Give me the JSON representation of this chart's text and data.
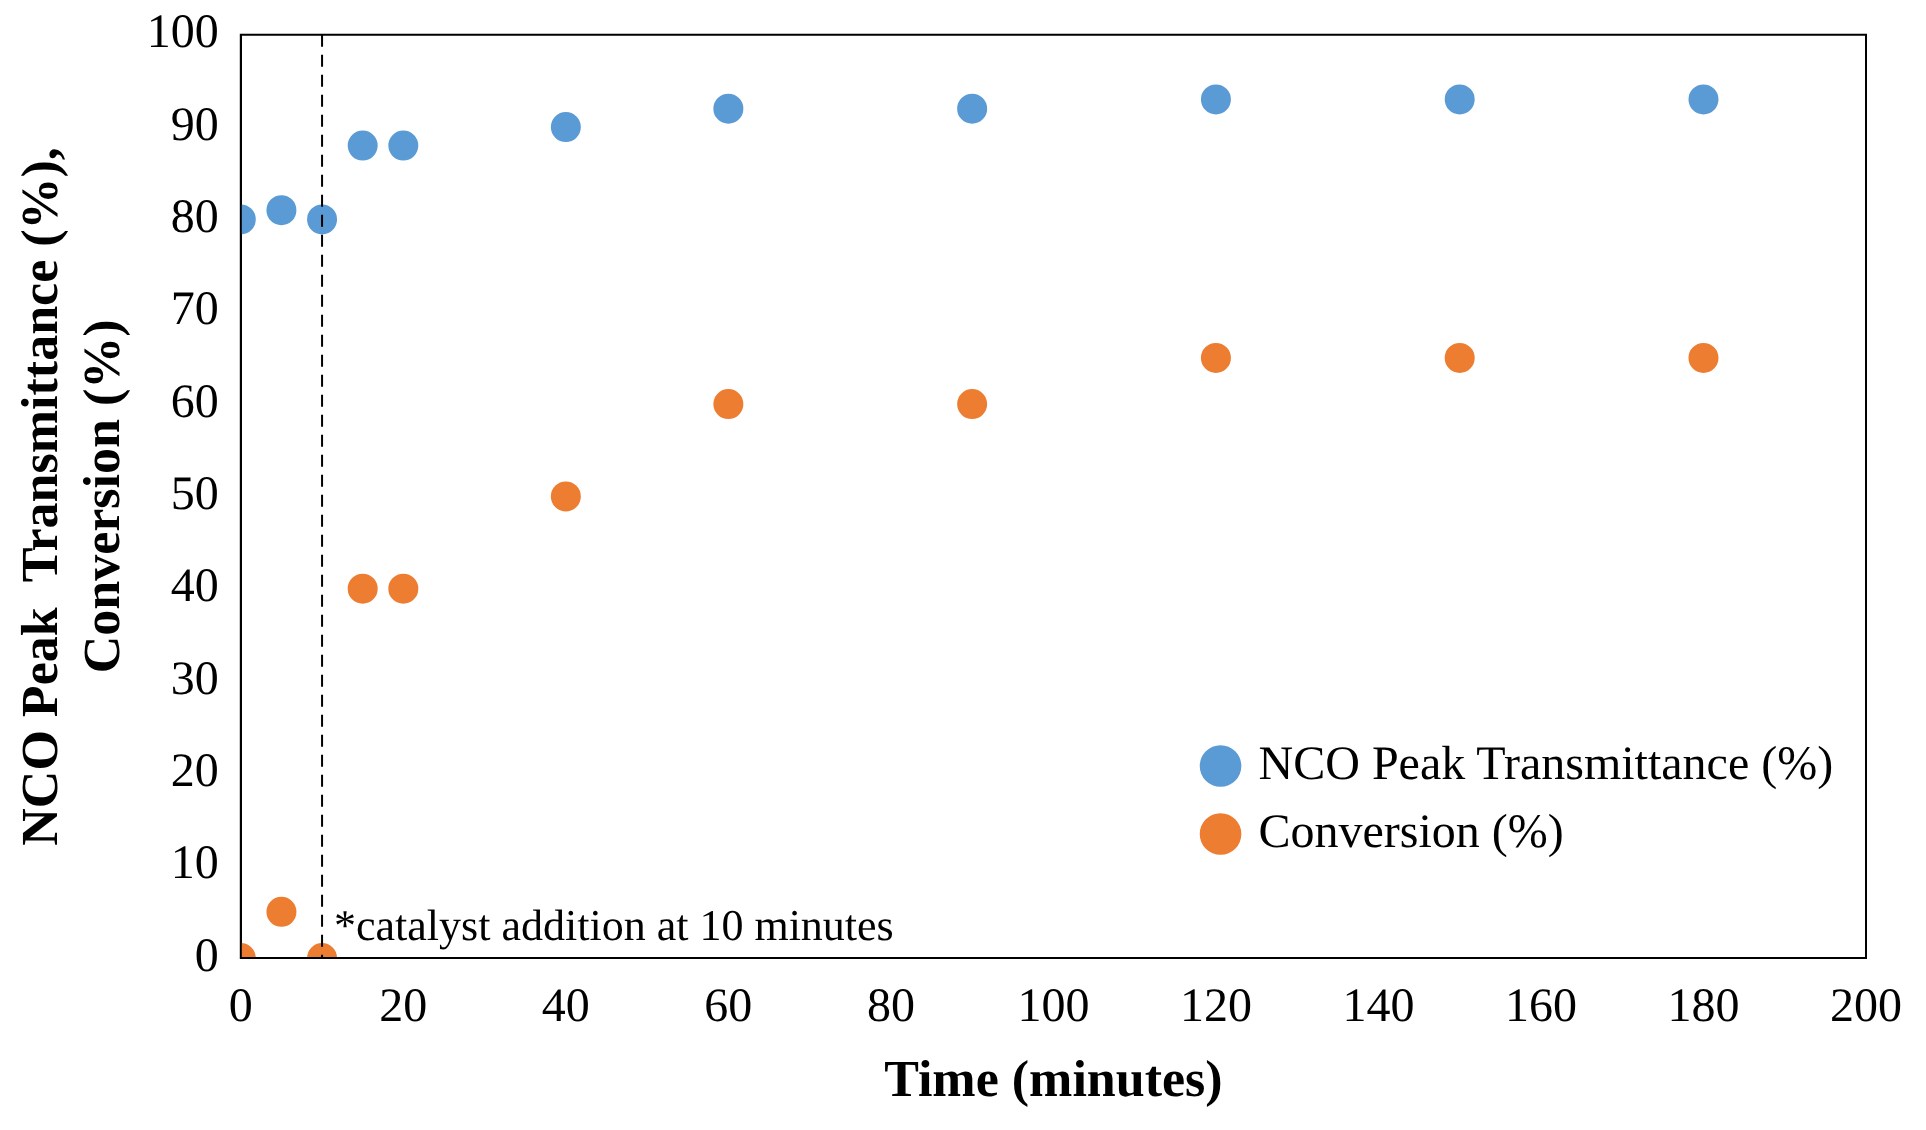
{
  "chart_data": {
    "type": "scatter",
    "xlabel": "Time (minutes)",
    "ylabel": "NCO Peak  Transmittance (%),\nConversion (%)",
    "x": [
      0,
      5,
      10,
      15,
      20,
      40,
      60,
      90,
      120,
      150,
      180
    ],
    "series": [
      {
        "name": "NCO Peak Transmittance (%)",
        "color": "#5b9bd5",
        "values": [
          80,
          81,
          80,
          88,
          88,
          90,
          92,
          92,
          93,
          93,
          93
        ]
      },
      {
        "name": "Conversion (%)",
        "color": "#ed7d31",
        "values": [
          0,
          5,
          0,
          40,
          40,
          50,
          60,
          60,
          65,
          65,
          65
        ]
      }
    ],
    "xlim": [
      0,
      200
    ],
    "xticks": [
      0,
      20,
      40,
      60,
      80,
      100,
      120,
      140,
      160,
      180,
      200
    ],
    "ylim": [
      0,
      100
    ],
    "yticks": [
      0,
      10,
      20,
      30,
      40,
      50,
      60,
      70,
      80,
      90,
      100
    ],
    "ref_lines": [
      {
        "axis": "x",
        "value": 10,
        "label": "*catalyst addition at 10 minutes",
        "color": "#000000",
        "line_style": "dashed"
      }
    ],
    "legend": "bottom right",
    "marker": "circle",
    "grid": false
  }
}
